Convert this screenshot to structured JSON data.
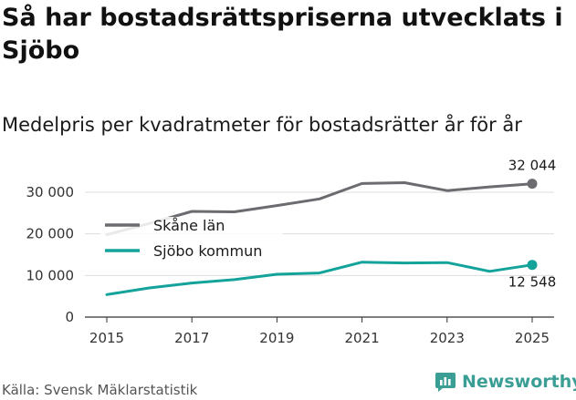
{
  "header": {
    "title": "Så har bostadsrättspriserna utvecklats i Sjöbo",
    "subtitle": "Medelpris per kvadratmeter för bostadsrätter år för år"
  },
  "footer": {
    "source": "Källa: Svensk Mäklarstatistik",
    "brand": "Newsworthy"
  },
  "colors": {
    "skane": "#6b6b70",
    "sjobo": "#14a39a",
    "grid": "#dddddd",
    "brand": "#3a9e95"
  },
  "chart_data": {
    "type": "line",
    "title": "Medelpris per kvadratmeter för bostadsrätter år för år",
    "xlabel": "",
    "ylabel": "",
    "x": [
      2015,
      2016,
      2017,
      2018,
      2019,
      2020,
      2021,
      2022,
      2023,
      2024,
      2025
    ],
    "xticks": [
      "2015",
      "2017",
      "2019",
      "2021",
      "2023",
      "2025"
    ],
    "yticks": [
      {
        "value": 0,
        "label": "0"
      },
      {
        "value": 10000,
        "label": "10 000"
      },
      {
        "value": 20000,
        "label": "20 000"
      },
      {
        "value": 30000,
        "label": "30 000"
      }
    ],
    "ylim": [
      0,
      30000
    ],
    "grid": true,
    "legend_position": "left",
    "series": [
      {
        "name": "Skåne län",
        "key": "skane",
        "values": [
          19800,
          22500,
          25400,
          25300,
          26800,
          28400,
          32100,
          32300,
          30400,
          31300,
          32044
        ],
        "end_label": "32 044"
      },
      {
        "name": "Sjöbo kommun",
        "key": "sjobo",
        "values": [
          5400,
          7000,
          8200,
          9000,
          10300,
          10600,
          13200,
          13000,
          13100,
          11000,
          12548
        ],
        "end_label": "12 548"
      }
    ]
  }
}
